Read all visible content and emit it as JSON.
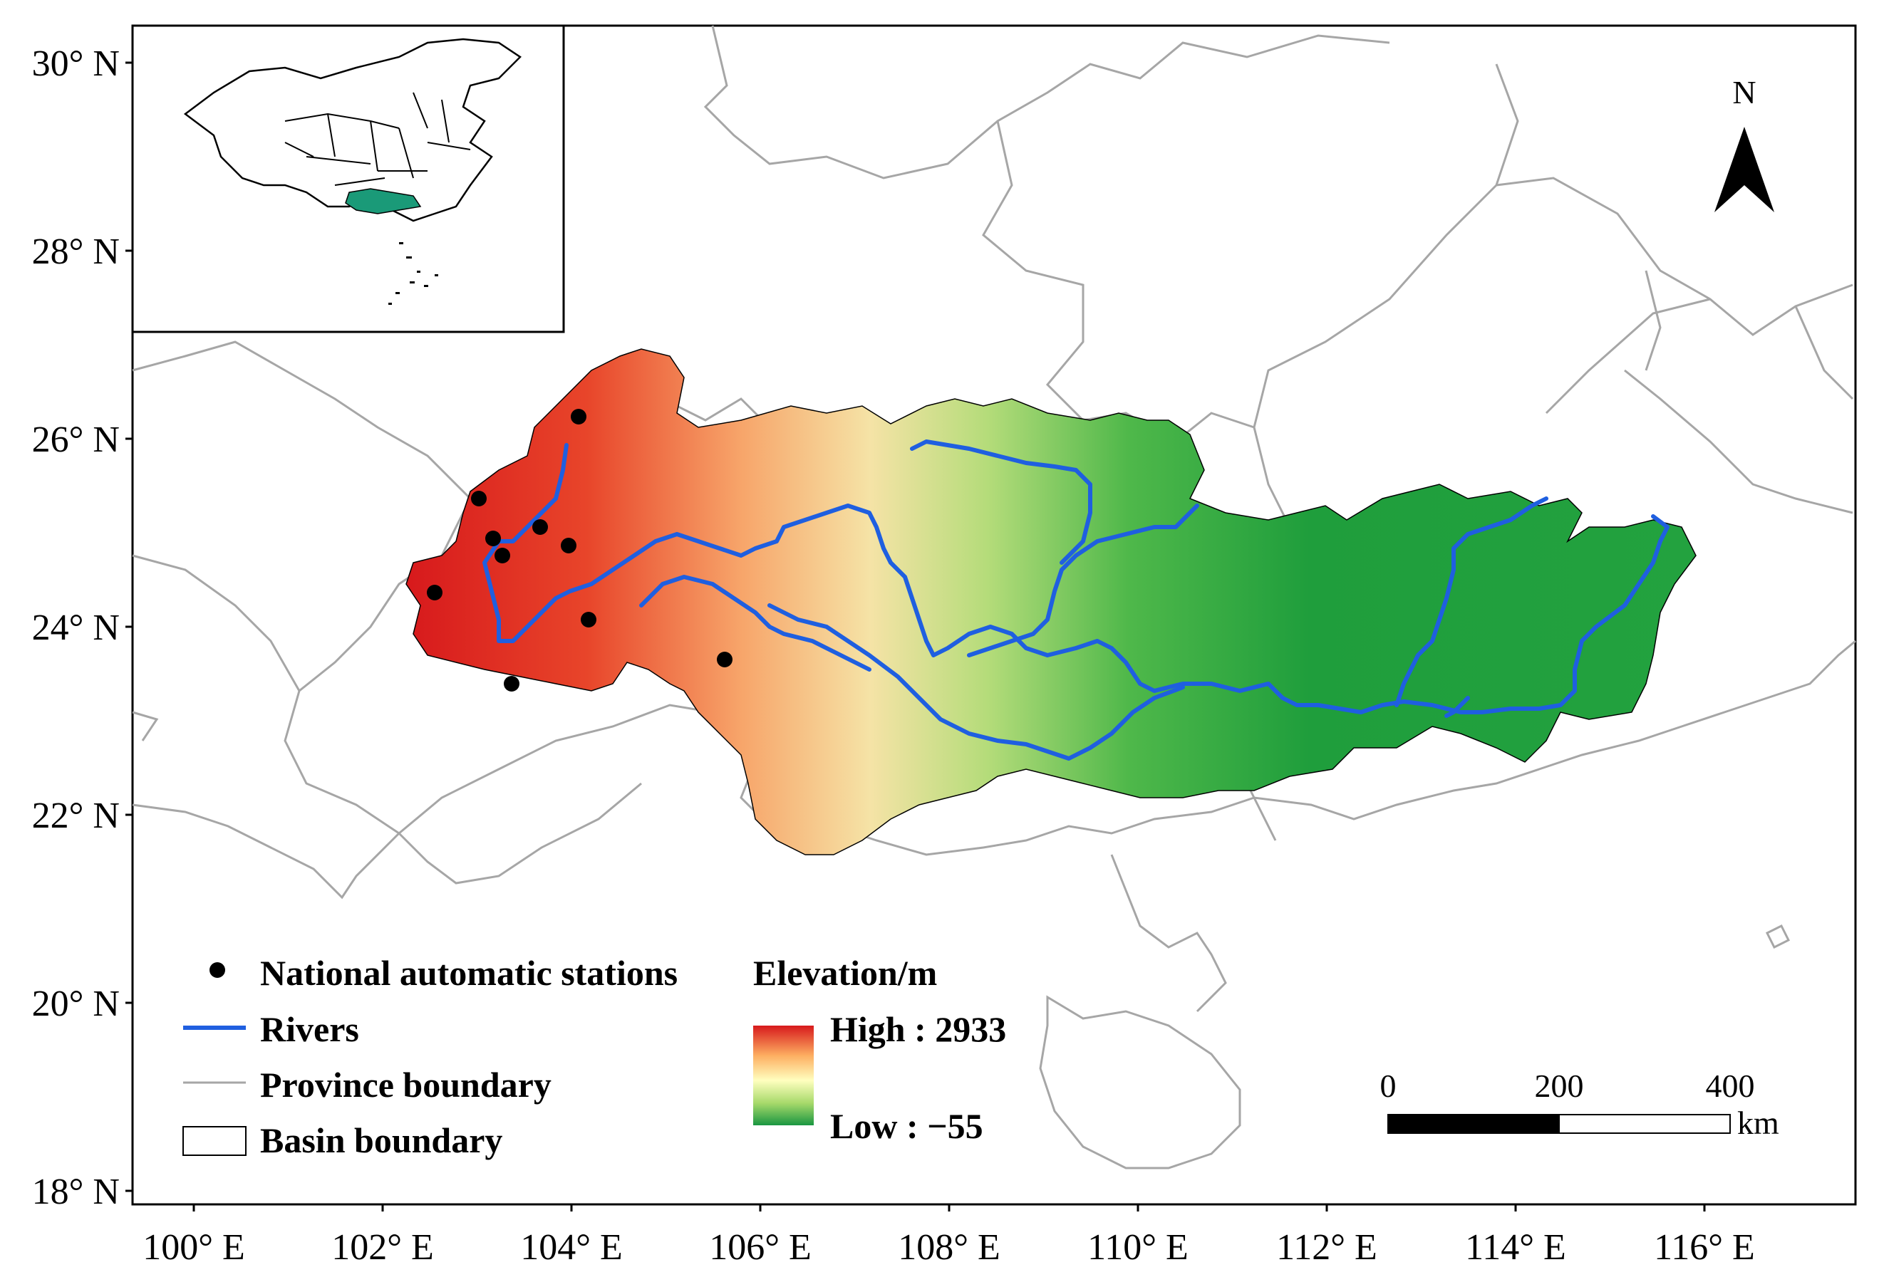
{
  "axes": {
    "lat_labels": [
      "30° N",
      "28° N",
      "26° N",
      "24° N",
      "22° N",
      "20° N",
      "18° N"
    ],
    "lon_labels": [
      "100° E",
      "102° E",
      "104° E",
      "106° E",
      "108° E",
      "110° E",
      "112° E",
      "114° E",
      "116° E"
    ]
  },
  "north_arrow": {
    "label": "N"
  },
  "legend": {
    "stations": "National automatic stations",
    "rivers": "Rivers",
    "province": "Province boundary",
    "basin": "Basin boundary",
    "elevation_title": "Elevation/m",
    "high": "High : 2933",
    "low": "Low : −55"
  },
  "scale_bar": {
    "ticks": [
      "0",
      "200",
      "400"
    ],
    "unit": "km"
  },
  "colors": {
    "river": "#1f5fe0",
    "province": "#a6a6a6",
    "station": "#000000",
    "elev_high": "#d7191c",
    "elev_mid": "#ffffbf",
    "elev_low": "#1a9641",
    "inset_highlight": "#1a9a78"
  }
}
